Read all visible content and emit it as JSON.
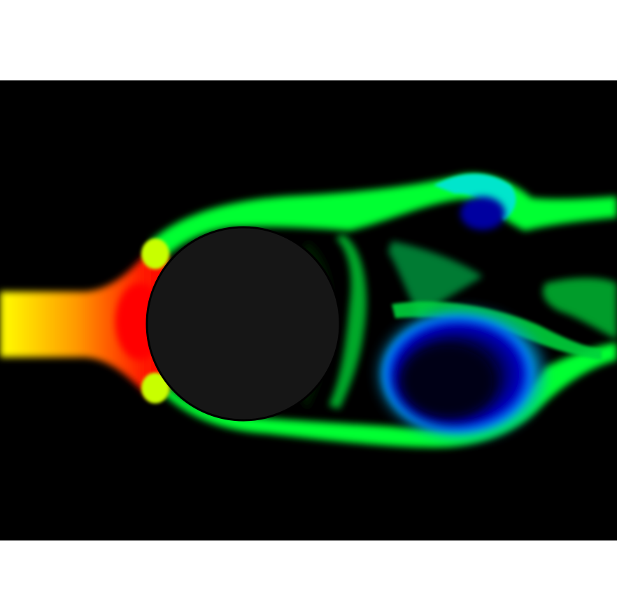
{
  "scene": {
    "kind": "flow-visualization",
    "page_background": "#ffffff",
    "field_background": "#000000",
    "obstacle": {
      "shape": "circle",
      "fill": "#161616",
      "stroke": "#000000"
    },
    "colormap": [
      "#000080",
      "#0000ff",
      "#00ffff",
      "#00ff00",
      "#ffff00",
      "#ff8000",
      "#ff0000"
    ],
    "plume_colors": {
      "inflow_left": "#ffff00",
      "inflow_mid": "#ff8a00",
      "stagnation": "#ff0000",
      "shear_layer": "#00ff33",
      "shear_edge": "#00e5cc",
      "vortex_core": "#00008c",
      "wake_dark": "#003300"
    }
  }
}
